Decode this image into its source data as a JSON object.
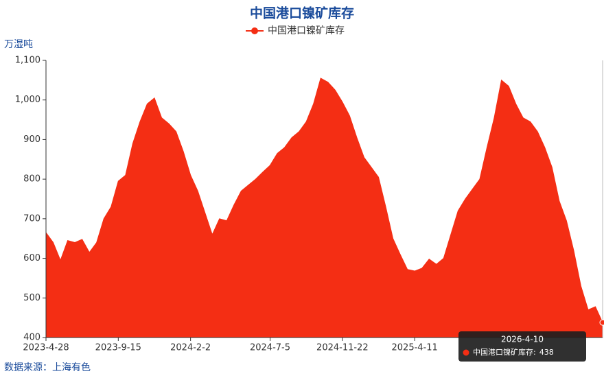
{
  "chart_data": {
    "type": "area",
    "title": "中国港口镍矿库存",
    "y_axis_label": "万湿吨",
    "source": "数据来源：上海有色",
    "categories": [
      "2023-4-28",
      "2023-5-12",
      "2023-5-26",
      "2023-6-9",
      "2023-6-23",
      "2023-7-7",
      "2023-7-21",
      "2023-8-4",
      "2023-8-18",
      "2023-9-1",
      "2023-9-15",
      "2023-9-29",
      "2023-10-13",
      "2023-10-27",
      "2023-11-10",
      "2023-11-24",
      "2023-12-8",
      "2023-12-22",
      "2024-1-5",
      "2024-1-19",
      "2024-2-2",
      "2024-2-16",
      "2024-3-1",
      "2024-3-15",
      "2024-3-29",
      "2024-4-12",
      "2024-4-26",
      "2024-5-10",
      "2024-5-24",
      "2024-6-7",
      "2024-6-21",
      "2024-7-5",
      "2024-7-19",
      "2024-8-2",
      "2024-8-16",
      "2024-8-30",
      "2024-9-13",
      "2024-9-27",
      "2024-10-11",
      "2024-10-25",
      "2024-11-8",
      "2024-11-22",
      "2024-12-6",
      "2024-12-20",
      "2025-1-3",
      "2025-1-17",
      "2025-1-31",
      "2025-2-14",
      "2025-2-28",
      "2025-3-14",
      "2025-3-28",
      "2025-4-11",
      "2025-4-25",
      "2025-5-9",
      "2025-5-23",
      "2025-6-6",
      "2025-6-20",
      "2025-7-4",
      "2025-7-18",
      "2025-8-1",
      "2025-8-15",
      "2025-8-29",
      "2025-9-12",
      "2025-9-26",
      "2025-10-10",
      "2025-10-24",
      "2025-11-7",
      "2025-11-21",
      "2025-12-5",
      "2025-12-19",
      "2026-1-2",
      "2026-1-16",
      "2026-1-30",
      "2026-2-13",
      "2026-2-27",
      "2026-3-13",
      "2026-3-27",
      "2026-4-10"
    ],
    "series": [
      {
        "name": "中国港口镍矿库存",
        "color": "#f42e14",
        "values": [
          665,
          640,
          595,
          645,
          640,
          648,
          615,
          640,
          700,
          730,
          795,
          810,
          890,
          945,
          990,
          1005,
          955,
          940,
          920,
          870,
          810,
          770,
          715,
          660,
          700,
          695,
          735,
          770,
          785,
          800,
          818,
          835,
          865,
          880,
          905,
          920,
          945,
          990,
          1055,
          1045,
          1025,
          995,
          960,
          905,
          855,
          830,
          805,
          730,
          650,
          610,
          572,
          568,
          575,
          598,
          585,
          600,
          660,
          720,
          750,
          775,
          800,
          880,
          955,
          1050,
          1035,
          990,
          955,
          945,
          920,
          880,
          830,
          745,
          695,
          620,
          530,
          470,
          478,
          438
        ]
      }
    ],
    "xticks": [
      "2023-4-28",
      "2023-9-15",
      "2024-2-2",
      "2024-7-5",
      "2024-11-22",
      "2025-4-11"
    ],
    "ylim": [
      400,
      1100
    ],
    "yticks": [
      400,
      500,
      600,
      700,
      800,
      900,
      {
        "value": 1000,
        "label": "1,000"
      },
      {
        "value": 1100,
        "label": "1,100"
      }
    ],
    "tooltip_separator": ":"
  }
}
